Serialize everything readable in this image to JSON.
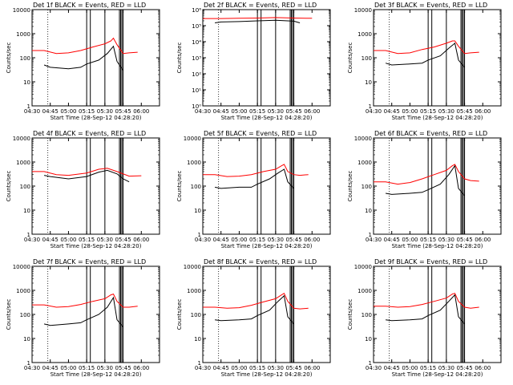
{
  "chart_data": [
    {
      "type": "line",
      "title": "Det 1f BLACK = Events, RED = LLD",
      "xlabel": "Start Time (28-Sep-12 04:28:20)",
      "ylabel": "Counts/sec",
      "y_scale": "log",
      "ylim": [
        1,
        10000
      ],
      "y_ticks": [
        "1",
        "10",
        "100",
        "1000",
        "10000"
      ],
      "x_ticks": [
        "04:30",
        "04:45",
        "05:00",
        "05:15",
        "05:30",
        "05:45",
        "06:00"
      ],
      "series": [
        {
          "name": "Events",
          "color": "#000000",
          "x": [
            "04:40",
            "04:45",
            "05:00",
            "05:10",
            "05:15",
            "05:25",
            "05:32",
            "05:37",
            "05:40",
            "05:45"
          ],
          "y": [
            50,
            40,
            35,
            40,
            55,
            80,
            150,
            300,
            70,
            30
          ]
        },
        {
          "name": "LLD",
          "color": "#ff0000",
          "x": [
            "04:30",
            "04:40",
            "04:50",
            "05:00",
            "05:10",
            "05:20",
            "05:30",
            "05:35",
            "05:37",
            "05:40",
            "05:45",
            "05:50",
            "05:57"
          ],
          "y": [
            200,
            200,
            150,
            160,
            200,
            280,
            380,
            500,
            650,
            350,
            150,
            160,
            170
          ]
        }
      ],
      "vlines": [
        "04:43",
        "05:15",
        "05:18",
        "05:30",
        "05:42",
        "05:43",
        "05:44",
        "05:45"
      ]
    },
    {
      "type": "line",
      "title": "Det 2f BLACK = Events, RED = LLD",
      "xlabel": "Start Time (28-Sep-12 04:28:20)",
      "ylabel": "Counts/sec",
      "y_scale": "log",
      "ylim": [
        1,
        1000000
      ],
      "y_ticks": [
        "10⁰",
        "10¹",
        "10²",
        "10³",
        "10⁴",
        "10⁵",
        "10⁶"
      ],
      "x_ticks": [
        "04:30",
        "04:45",
        "05:00",
        "05:15",
        "05:30",
        "05:45",
        "06:00"
      ],
      "series": [
        {
          "name": "Events",
          "color": "#000000",
          "x": [
            "04:40",
            "04:45",
            "05:00",
            "05:15",
            "05:30",
            "05:45",
            "05:50"
          ],
          "y": [
            150000,
            170000,
            180000,
            200000,
            220000,
            190000,
            150000
          ]
        },
        {
          "name": "LLD",
          "color": "#ff0000",
          "x": [
            "04:30",
            "04:45",
            "05:00",
            "05:15",
            "05:30",
            "05:45",
            "06:00"
          ],
          "y": [
            280000,
            280000,
            290000,
            300000,
            320000,
            300000,
            290000
          ]
        }
      ],
      "vlines": [
        "04:43",
        "05:15",
        "05:18",
        "05:30",
        "05:42",
        "05:43",
        "05:44",
        "05:45"
      ]
    },
    {
      "type": "line",
      "title": "Det 3f BLACK = Events, RED = LLD",
      "xlabel": "Start Time (28-Sep-12 04:28:20)",
      "ylabel": "Counts/sec",
      "y_scale": "log",
      "ylim": [
        1,
        10000
      ],
      "y_ticks": [
        "1",
        "10",
        "100",
        "1000",
        "10000"
      ],
      "x_ticks": [
        "04:30",
        "04:45",
        "05:00",
        "05:15",
        "05:30",
        "05:45",
        "06:00"
      ],
      "series": [
        {
          "name": "Events",
          "color": "#000000",
          "x": [
            "04:40",
            "04:45",
            "05:00",
            "05:10",
            "05:15",
            "05:25",
            "05:32",
            "05:37",
            "05:40",
            "05:45"
          ],
          "y": [
            60,
            50,
            55,
            60,
            80,
            120,
            250,
            400,
            80,
            40
          ]
        },
        {
          "name": "LLD",
          "color": "#ff0000",
          "x": [
            "04:30",
            "04:40",
            "04:50",
            "05:00",
            "05:10",
            "05:20",
            "05:30",
            "05:35",
            "05:37",
            "05:40",
            "05:45",
            "05:50",
            "05:57"
          ],
          "y": [
            200,
            200,
            150,
            160,
            220,
            280,
            400,
            500,
            500,
            300,
            150,
            160,
            170
          ]
        }
      ],
      "vlines": [
        "04:43",
        "05:15",
        "05:18",
        "05:30",
        "05:42",
        "05:43",
        "05:44",
        "05:45"
      ]
    },
    {
      "type": "line",
      "title": "Det 4f BLACK = Events, RED = LLD",
      "xlabel": "Start Time (28-Sep-12 04:28:20)",
      "ylabel": "Counts/sec",
      "y_scale": "log",
      "ylim": [
        1,
        10000
      ],
      "y_ticks": [
        "1",
        "10",
        "100",
        "1000",
        "10000"
      ],
      "x_ticks": [
        "04:30",
        "04:45",
        "05:00",
        "05:15",
        "05:30",
        "05:45",
        "06:00"
      ],
      "series": [
        {
          "name": "Events",
          "color": "#000000",
          "x": [
            "04:40",
            "04:45",
            "05:00",
            "05:15",
            "05:25",
            "05:32",
            "05:40",
            "05:45",
            "05:50"
          ],
          "y": [
            280,
            250,
            200,
            250,
            380,
            450,
            320,
            200,
            150
          ]
        },
        {
          "name": "LLD",
          "color": "#ff0000",
          "x": [
            "04:30",
            "04:40",
            "04:50",
            "05:00",
            "05:15",
            "05:25",
            "05:32",
            "05:40",
            "05:50",
            "06:00"
          ],
          "y": [
            400,
            400,
            300,
            280,
            350,
            500,
            550,
            400,
            260,
            270
          ]
        }
      ],
      "vlines": [
        "04:43",
        "05:15",
        "05:18",
        "05:30",
        "05:42",
        "05:43",
        "05:44",
        "05:45"
      ]
    },
    {
      "type": "line",
      "title": "Det 5f BLACK = Events, RED = LLD",
      "xlabel": "Start Time (28-Sep-12 04:28:20)",
      "ylabel": "Counts/sec",
      "y_scale": "log",
      "ylim": [
        1,
        10000
      ],
      "y_ticks": [
        "1",
        "10",
        "100",
        "1000",
        "10000"
      ],
      "x_ticks": [
        "04:30",
        "04:45",
        "05:00",
        "05:15",
        "05:30",
        "05:45",
        "06:00"
      ],
      "series": [
        {
          "name": "Events",
          "color": "#000000",
          "x": [
            "04:40",
            "04:45",
            "05:00",
            "05:10",
            "05:15",
            "05:25",
            "05:32",
            "05:37",
            "05:40",
            "05:45"
          ],
          "y": [
            90,
            80,
            90,
            90,
            120,
            200,
            350,
            500,
            150,
            80
          ]
        },
        {
          "name": "LLD",
          "color": "#ff0000",
          "x": [
            "04:30",
            "04:40",
            "04:50",
            "05:00",
            "05:10",
            "05:20",
            "05:30",
            "05:35",
            "05:37",
            "05:40",
            "05:45",
            "05:50",
            "05:57"
          ],
          "y": [
            300,
            300,
            250,
            260,
            300,
            400,
            500,
            700,
            800,
            400,
            300,
            280,
            300
          ]
        }
      ],
      "vlines": [
        "04:43",
        "05:15",
        "05:18",
        "05:30",
        "05:42",
        "05:43",
        "05:44",
        "05:45"
      ]
    },
    {
      "type": "line",
      "title": "Det 6f BLACK = Events, RED = LLD",
      "xlabel": "Start Time (28-Sep-12 04:28:20)",
      "ylabel": "Counts/sec",
      "y_scale": "log",
      "ylim": [
        1,
        10000
      ],
      "y_ticks": [
        "1",
        "10",
        "100",
        "1000",
        "10000"
      ],
      "x_ticks": [
        "04:30",
        "04:45",
        "05:00",
        "05:15",
        "05:30",
        "05:45",
        "06:00"
      ],
      "series": [
        {
          "name": "Events",
          "color": "#000000",
          "x": [
            "04:40",
            "04:45",
            "05:00",
            "05:10",
            "05:15",
            "05:25",
            "05:32",
            "05:37",
            "05:40",
            "05:45"
          ],
          "y": [
            50,
            45,
            50,
            55,
            70,
            120,
            300,
            700,
            80,
            40
          ]
        },
        {
          "name": "LLD",
          "color": "#ff0000",
          "x": [
            "04:30",
            "04:40",
            "04:50",
            "05:00",
            "05:10",
            "05:20",
            "05:30",
            "05:35",
            "05:37",
            "05:40",
            "05:45",
            "05:50",
            "05:57"
          ],
          "y": [
            150,
            150,
            120,
            140,
            200,
            300,
            450,
            700,
            800,
            400,
            200,
            170,
            160
          ]
        }
      ],
      "vlines": [
        "04:43",
        "05:15",
        "05:18",
        "05:30",
        "05:42",
        "05:43",
        "05:44",
        "05:45"
      ]
    },
    {
      "type": "line",
      "title": "Det 7f BLACK = Events, RED = LLD",
      "xlabel": "Start Time (28-Sep-12 04:28:20)",
      "ylabel": "Counts/sec",
      "y_scale": "log",
      "ylim": [
        1,
        10000
      ],
      "y_ticks": [
        "1",
        "10",
        "100",
        "1000",
        "10000"
      ],
      "x_ticks": [
        "04:30",
        "04:45",
        "05:00",
        "05:15",
        "05:30",
        "05:45",
        "06:00"
      ],
      "series": [
        {
          "name": "Events",
          "color": "#000000",
          "x": [
            "04:40",
            "04:45",
            "05:00",
            "05:10",
            "05:15",
            "05:25",
            "05:32",
            "05:37",
            "05:40",
            "05:45"
          ],
          "y": [
            40,
            35,
            40,
            45,
            60,
            100,
            200,
            500,
            60,
            30
          ]
        },
        {
          "name": "LLD",
          "color": "#ff0000",
          "x": [
            "04:30",
            "04:40",
            "04:50",
            "05:00",
            "05:10",
            "05:20",
            "05:30",
            "05:35",
            "05:37",
            "05:40",
            "05:45",
            "05:50",
            "05:57"
          ],
          "y": [
            250,
            250,
            200,
            210,
            260,
            350,
            450,
            650,
            700,
            350,
            200,
            200,
            220
          ]
        }
      ],
      "vlines": [
        "04:43",
        "05:15",
        "05:18",
        "05:30",
        "05:42",
        "05:43",
        "05:44",
        "05:45"
      ]
    },
    {
      "type": "line",
      "title": "Det 8f BLACK = Events, RED = LLD",
      "xlabel": "Start Time (28-Sep-12 04:28:20)",
      "ylabel": "Counts/sec",
      "y_scale": "log",
      "ylim": [
        1,
        10000
      ],
      "y_ticks": [
        "1",
        "10",
        "100",
        "1000",
        "10000"
      ],
      "x_ticks": [
        "04:30",
        "04:45",
        "05:00",
        "05:15",
        "05:30",
        "05:45",
        "06:00"
      ],
      "series": [
        {
          "name": "Events",
          "color": "#000000",
          "x": [
            "04:40",
            "04:45",
            "05:00",
            "05:10",
            "05:15",
            "05:25",
            "05:32",
            "05:37",
            "05:40",
            "05:45"
          ],
          "y": [
            60,
            55,
            60,
            65,
            90,
            150,
            350,
            600,
            80,
            40
          ]
        },
        {
          "name": "LLD",
          "color": "#ff0000",
          "x": [
            "04:30",
            "04:40",
            "04:50",
            "05:00",
            "05:10",
            "05:20",
            "05:30",
            "05:35",
            "05:37",
            "05:40",
            "05:45",
            "05:50",
            "05:57"
          ],
          "y": [
            200,
            200,
            180,
            190,
            240,
            330,
            450,
            650,
            750,
            350,
            180,
            170,
            180
          ]
        }
      ],
      "vlines": [
        "04:43",
        "05:15",
        "05:18",
        "05:30",
        "05:42",
        "05:43",
        "05:44",
        "05:45"
      ]
    },
    {
      "type": "line",
      "title": "Det 9f BLACK = Events, RED = LLD",
      "xlabel": "Start Time (28-Sep-12 04:28:20)",
      "ylabel": "Counts/sec",
      "y_scale": "log",
      "ylim": [
        1,
        10000
      ],
      "y_ticks": [
        "1",
        "10",
        "100",
        "1000",
        "10000"
      ],
      "x_ticks": [
        "04:30",
        "04:45",
        "05:00",
        "05:15",
        "05:30",
        "05:45",
        "06:00"
      ],
      "series": [
        {
          "name": "Events",
          "color": "#000000",
          "x": [
            "04:40",
            "04:45",
            "05:00",
            "05:10",
            "05:15",
            "05:25",
            "05:32",
            "05:37",
            "05:40",
            "05:45"
          ],
          "y": [
            60,
            55,
            60,
            65,
            90,
            150,
            350,
            650,
            80,
            40
          ]
        },
        {
          "name": "LLD",
          "color": "#ff0000",
          "x": [
            "04:30",
            "04:40",
            "04:50",
            "05:00",
            "05:10",
            "05:20",
            "05:30",
            "05:35",
            "05:37",
            "05:40",
            "05:45",
            "05:50",
            "05:57"
          ],
          "y": [
            220,
            220,
            200,
            210,
            260,
            350,
            480,
            700,
            750,
            350,
            200,
            180,
            200
          ]
        }
      ],
      "vlines": [
        "04:43",
        "05:15",
        "05:18",
        "05:30",
        "05:42",
        "05:43",
        "05:44",
        "05:45"
      ]
    }
  ]
}
